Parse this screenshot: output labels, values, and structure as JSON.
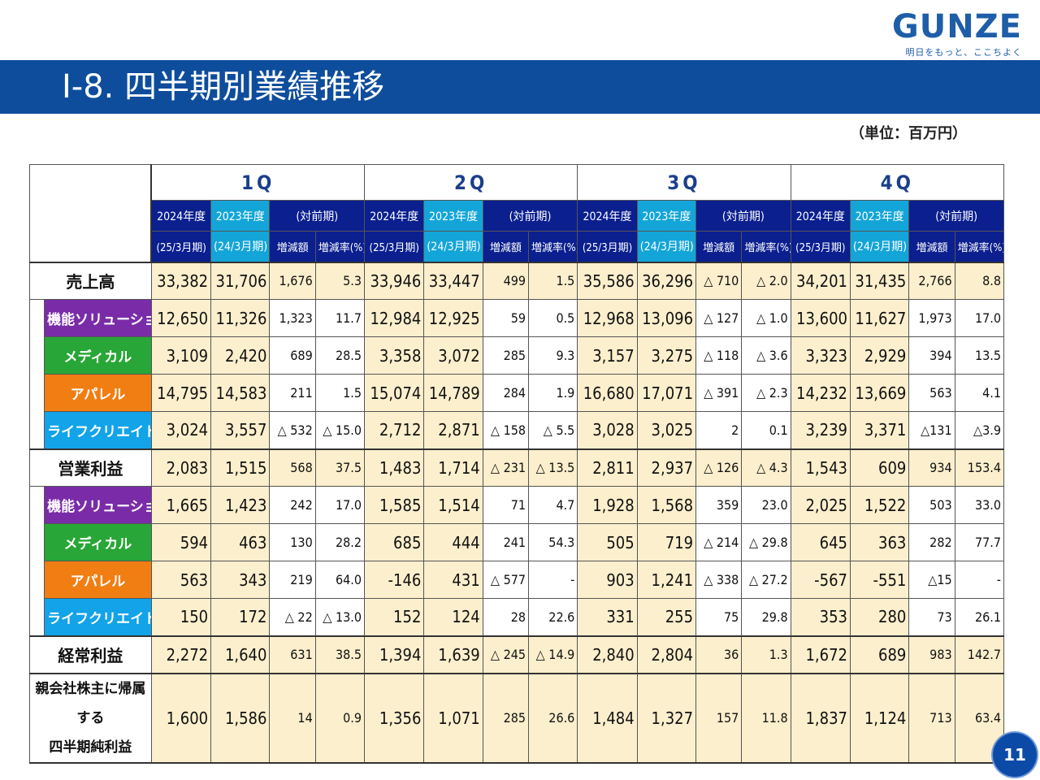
{
  "logo": {
    "word": "GUNZE",
    "tagline": "明日をもっと、ここちよく"
  },
  "title": "Ⅰ-8. 四半期別業績推移",
  "unit": "（単位：百万円）",
  "quarters": [
    "1Q",
    "2Q",
    "3Q",
    "4Q"
  ],
  "headers": {
    "cur_year": "2024年度",
    "cur_period": "(25/3月期)",
    "prev_year": "2023年度",
    "prev_period": "(24/3月期)",
    "vs": "(対前期)",
    "diff": "増減額",
    "rate": "増減率(%)"
  },
  "rows": [
    {
      "label": "売上高",
      "kind": "main",
      "cells": [
        "33,382",
        "31,706",
        "1,676",
        "5.3",
        "33,946",
        "33,447",
        "499",
        "1.5",
        "35,586",
        "36,296",
        "△ 710",
        "△ 2.0",
        "34,201",
        "31,435",
        "2,766",
        "8.8"
      ]
    },
    {
      "label": "機能ソリューション",
      "kind": "seg",
      "color": "#7a2ca8",
      "cells": [
        "12,650",
        "11,326",
        "1,323",
        "11.7",
        "12,984",
        "12,925",
        "59",
        "0.5",
        "12,968",
        "13,096",
        "△ 127",
        "△ 1.0",
        "13,600",
        "11,627",
        "1,973",
        "17.0"
      ]
    },
    {
      "label": "メディカル",
      "kind": "seg",
      "color": "#28a637",
      "cells": [
        "3,109",
        "2,420",
        "689",
        "28.5",
        "3,358",
        "3,072",
        "285",
        "9.3",
        "3,157",
        "3,275",
        "△ 118",
        "△ 3.6",
        "3,323",
        "2,929",
        "394",
        "13.5"
      ]
    },
    {
      "label": "アパレル",
      "kind": "seg",
      "color": "#f07e12",
      "cells": [
        "14,795",
        "14,583",
        "211",
        "1.5",
        "15,074",
        "14,789",
        "284",
        "1.9",
        "16,680",
        "17,071",
        "△ 391",
        "△ 2.3",
        "14,232",
        "13,669",
        "563",
        "4.1"
      ]
    },
    {
      "label": "ライフクリエイト",
      "kind": "seg",
      "color": "#12a3e8",
      "cells": [
        "3,024",
        "3,557",
        "△ 532",
        "△ 15.0",
        "2,712",
        "2,871",
        "△ 158",
        "△ 5.5",
        "3,028",
        "3,025",
        "2",
        "0.1",
        "3,239",
        "3,371",
        "△131",
        "△3.9"
      ]
    },
    {
      "label": "営業利益",
      "kind": "main",
      "cells": [
        "2,083",
        "1,515",
        "568",
        "37.5",
        "1,483",
        "1,714",
        "△ 231",
        "△ 13.5",
        "2,811",
        "2,937",
        "△ 126",
        "△ 4.3",
        "1,543",
        "609",
        "934",
        "153.4"
      ]
    },
    {
      "label": "機能ソリューション",
      "kind": "seg",
      "color": "#7a2ca8",
      "cells": [
        "1,665",
        "1,423",
        "242",
        "17.0",
        "1,585",
        "1,514",
        "71",
        "4.7",
        "1,928",
        "1,568",
        "359",
        "23.0",
        "2,025",
        "1,522",
        "503",
        "33.0"
      ]
    },
    {
      "label": "メディカル",
      "kind": "seg",
      "color": "#28a637",
      "cells": [
        "594",
        "463",
        "130",
        "28.2",
        "685",
        "444",
        "241",
        "54.3",
        "505",
        "719",
        "△ 214",
        "△ 29.8",
        "645",
        "363",
        "282",
        "77.7"
      ]
    },
    {
      "label": "アパレル",
      "kind": "seg",
      "color": "#f07e12",
      "cells": [
        "563",
        "343",
        "219",
        "64.0",
        "-146",
        "431",
        "△ 577",
        "-",
        "903",
        "1,241",
        "△ 338",
        "△ 27.2",
        "-567",
        "-551",
        "△15",
        "-"
      ]
    },
    {
      "label": "ライフクリエイト",
      "kind": "seg",
      "color": "#12a3e8",
      "cells": [
        "150",
        "172",
        "△ 22",
        "△ 13.0",
        "152",
        "124",
        "28",
        "22.6",
        "331",
        "255",
        "75",
        "29.8",
        "353",
        "280",
        "73",
        "26.1"
      ]
    },
    {
      "label": "経常利益",
      "kind": "main",
      "cells": [
        "2,272",
        "1,640",
        "631",
        "38.5",
        "1,394",
        "1,639",
        "△ 245",
        "△ 14.9",
        "2,840",
        "2,804",
        "36",
        "1.3",
        "1,672",
        "689",
        "983",
        "142.7"
      ]
    },
    {
      "label": "親会社株主に帰属する四半期純利益",
      "label_line1": "親会社株主に帰属する",
      "label_line2": "四半期純利益",
      "kind": "long",
      "cells": [
        "1,600",
        "1,586",
        "14",
        "0.9",
        "1,356",
        "1,071",
        "285",
        "26.6",
        "1,484",
        "1,327",
        "157",
        "11.8",
        "1,837",
        "1,124",
        "713",
        "63.4"
      ]
    }
  ],
  "page_number": "11"
}
